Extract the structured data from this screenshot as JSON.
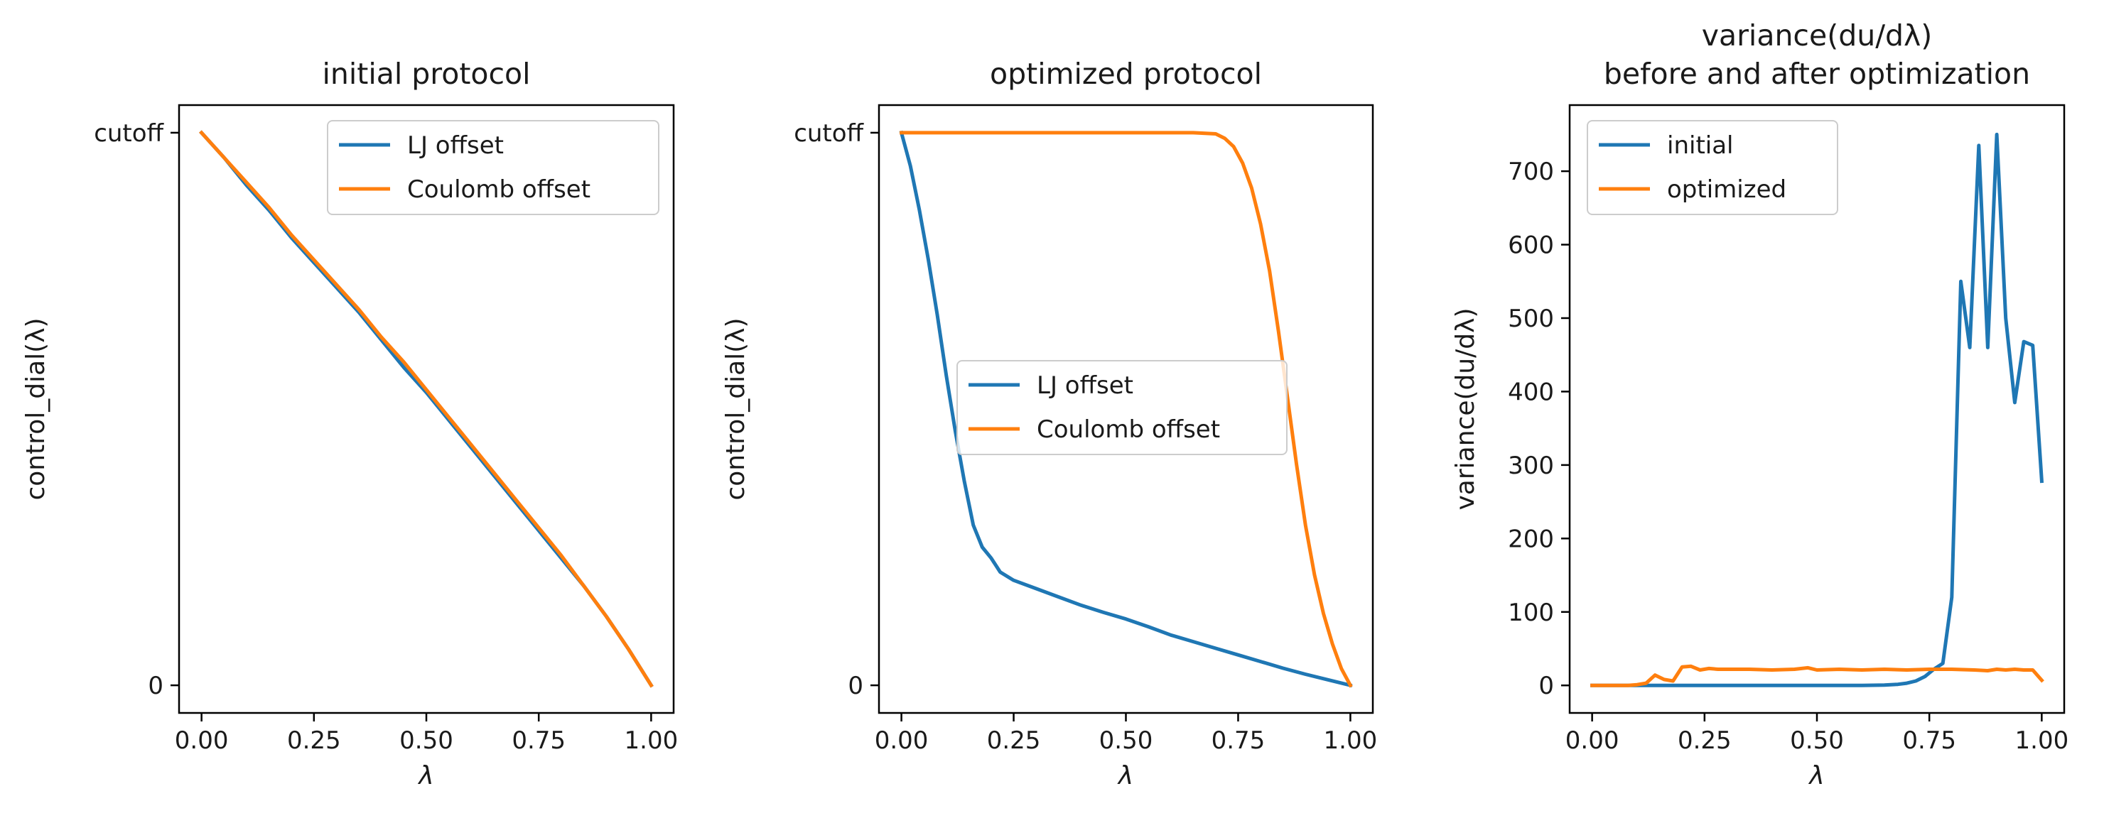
{
  "chart_data": [
    {
      "type": "line",
      "title": "initial protocol",
      "xlabel": "λ",
      "ylabel": "control_dial(λ)",
      "xlim": [
        -0.05,
        1.05
      ],
      "ylim": [
        -0.05,
        1.05
      ],
      "xticks": [
        {
          "value": 0,
          "label": "0.00"
        },
        {
          "value": 0.25,
          "label": "0.25"
        },
        {
          "value": 0.5,
          "label": "0.50"
        },
        {
          "value": 0.75,
          "label": "0.75"
        },
        {
          "value": 1,
          "label": "1.00"
        }
      ],
      "yticks": [
        {
          "value": 0,
          "label": "0"
        },
        {
          "value": 1,
          "label": "cutoff"
        }
      ],
      "legend": {
        "position": "upper-right"
      },
      "series": [
        {
          "name": "LJ offset",
          "color": "#1f77b4",
          "x": [
            0,
            0.05,
            0.1,
            0.15,
            0.2,
            0.25,
            0.3,
            0.35,
            0.4,
            0.45,
            0.5,
            0.55,
            0.6,
            0.65,
            0.7,
            0.75,
            0.8,
            0.85,
            0.9,
            0.95,
            1.0
          ],
          "y": [
            1.0,
            0.955,
            0.905,
            0.86,
            0.81,
            0.765,
            0.72,
            0.675,
            0.625,
            0.575,
            0.53,
            0.48,
            0.43,
            0.38,
            0.33,
            0.28,
            0.23,
            0.18,
            0.125,
            0.065,
            0.0
          ]
        },
        {
          "name": "Coulomb offset",
          "color": "#ff7f0e",
          "x": [
            0,
            0.05,
            0.1,
            0.15,
            0.2,
            0.25,
            0.3,
            0.35,
            0.4,
            0.45,
            0.5,
            0.55,
            0.6,
            0.65,
            0.7,
            0.75,
            0.8,
            0.85,
            0.9,
            0.95,
            1.0
          ],
          "y": [
            1.0,
            0.955,
            0.91,
            0.865,
            0.815,
            0.77,
            0.725,
            0.68,
            0.63,
            0.585,
            0.535,
            0.485,
            0.435,
            0.385,
            0.335,
            0.285,
            0.235,
            0.18,
            0.125,
            0.065,
            0.0
          ]
        }
      ]
    },
    {
      "type": "line",
      "title": "optimized protocol",
      "xlabel": "λ",
      "ylabel": "control_dial(λ)",
      "xlim": [
        -0.05,
        1.05
      ],
      "ylim": [
        -0.05,
        1.05
      ],
      "xticks": [
        {
          "value": 0,
          "label": "0.00"
        },
        {
          "value": 0.25,
          "label": "0.25"
        },
        {
          "value": 0.5,
          "label": "0.50"
        },
        {
          "value": 0.75,
          "label": "0.75"
        },
        {
          "value": 1,
          "label": "1.00"
        }
      ],
      "yticks": [
        {
          "value": 0,
          "label": "0"
        },
        {
          "value": 1,
          "label": "cutoff"
        }
      ],
      "legend": {
        "position": "center-right"
      },
      "series": [
        {
          "name": "LJ offset",
          "color": "#1f77b4",
          "x": [
            0,
            0.02,
            0.04,
            0.06,
            0.08,
            0.1,
            0.12,
            0.14,
            0.16,
            0.18,
            0.2,
            0.22,
            0.25,
            0.3,
            0.35,
            0.4,
            0.45,
            0.5,
            0.55,
            0.6,
            0.65,
            0.7,
            0.75,
            0.8,
            0.85,
            0.9,
            0.95,
            1.0
          ],
          "y": [
            1.0,
            0.94,
            0.86,
            0.77,
            0.67,
            0.56,
            0.46,
            0.37,
            0.29,
            0.25,
            0.23,
            0.205,
            0.19,
            0.175,
            0.16,
            0.145,
            0.132,
            0.12,
            0.106,
            0.091,
            0.079,
            0.067,
            0.055,
            0.043,
            0.031,
            0.02,
            0.01,
            0.0
          ]
        },
        {
          "name": "Coulomb offset",
          "color": "#ff7f0e",
          "x": [
            0,
            0.1,
            0.2,
            0.3,
            0.4,
            0.5,
            0.6,
            0.65,
            0.7,
            0.72,
            0.74,
            0.76,
            0.78,
            0.8,
            0.82,
            0.84,
            0.86,
            0.88,
            0.9,
            0.92,
            0.94,
            0.96,
            0.98,
            1.0
          ],
          "y": [
            1.0,
            1.0,
            1.0,
            1.0,
            1.0,
            1.0,
            1.0,
            1.0,
            0.998,
            0.99,
            0.975,
            0.945,
            0.9,
            0.835,
            0.75,
            0.64,
            0.52,
            0.4,
            0.29,
            0.2,
            0.13,
            0.075,
            0.03,
            0.0
          ]
        }
      ]
    },
    {
      "type": "line",
      "title": "variance(du/dλ)",
      "subtitle": "before and after optimization",
      "xlabel": "λ",
      "ylabel": "variance(du/dλ)",
      "xlim": [
        -0.05,
        1.05
      ],
      "ylim": [
        -37.5,
        790
      ],
      "xticks": [
        {
          "value": 0,
          "label": "0.00"
        },
        {
          "value": 0.25,
          "label": "0.25"
        },
        {
          "value": 0.5,
          "label": "0.50"
        },
        {
          "value": 0.75,
          "label": "0.75"
        },
        {
          "value": 1,
          "label": "1.00"
        }
      ],
      "yticks": [
        {
          "value": 0,
          "label": "0"
        },
        {
          "value": 100,
          "label": "100"
        },
        {
          "value": 200,
          "label": "200"
        },
        {
          "value": 300,
          "label": "300"
        },
        {
          "value": 400,
          "label": "400"
        },
        {
          "value": 500,
          "label": "500"
        },
        {
          "value": 600,
          "label": "600"
        },
        {
          "value": 700,
          "label": "700"
        }
      ],
      "legend": {
        "position": "upper-left"
      },
      "series": [
        {
          "name": "initial",
          "color": "#1f77b4",
          "x": [
            0,
            0.1,
            0.2,
            0.3,
            0.4,
            0.5,
            0.6,
            0.65,
            0.68,
            0.7,
            0.72,
            0.74,
            0.76,
            0.78,
            0.8,
            0.82,
            0.84,
            0.86,
            0.88,
            0.9,
            0.92,
            0.94,
            0.96,
            0.98,
            1.0
          ],
          "y": [
            0,
            0,
            0,
            0,
            0,
            0,
            0,
            0.5,
            1.5,
            3,
            6,
            12,
            22,
            30,
            120,
            550,
            460,
            735,
            460,
            750,
            500,
            385,
            468,
            463,
            278
          ]
        },
        {
          "name": "optimized",
          "color": "#ff7f0e",
          "x": [
            0,
            0.02,
            0.04,
            0.06,
            0.08,
            0.1,
            0.12,
            0.14,
            0.16,
            0.18,
            0.2,
            0.22,
            0.24,
            0.26,
            0.28,
            0.3,
            0.35,
            0.4,
            0.45,
            0.48,
            0.5,
            0.55,
            0.6,
            0.65,
            0.7,
            0.75,
            0.8,
            0.85,
            0.88,
            0.9,
            0.92,
            0.94,
            0.96,
            0.98,
            1.0
          ],
          "y": [
            0,
            0,
            0,
            0,
            0,
            1,
            3,
            14,
            8,
            6,
            25,
            26,
            21,
            23,
            22,
            22,
            22,
            21,
            22,
            24,
            21,
            22,
            21,
            22,
            21,
            22,
            22,
            21,
            20,
            22,
            21,
            22,
            21,
            21,
            7
          ]
        }
      ]
    }
  ]
}
